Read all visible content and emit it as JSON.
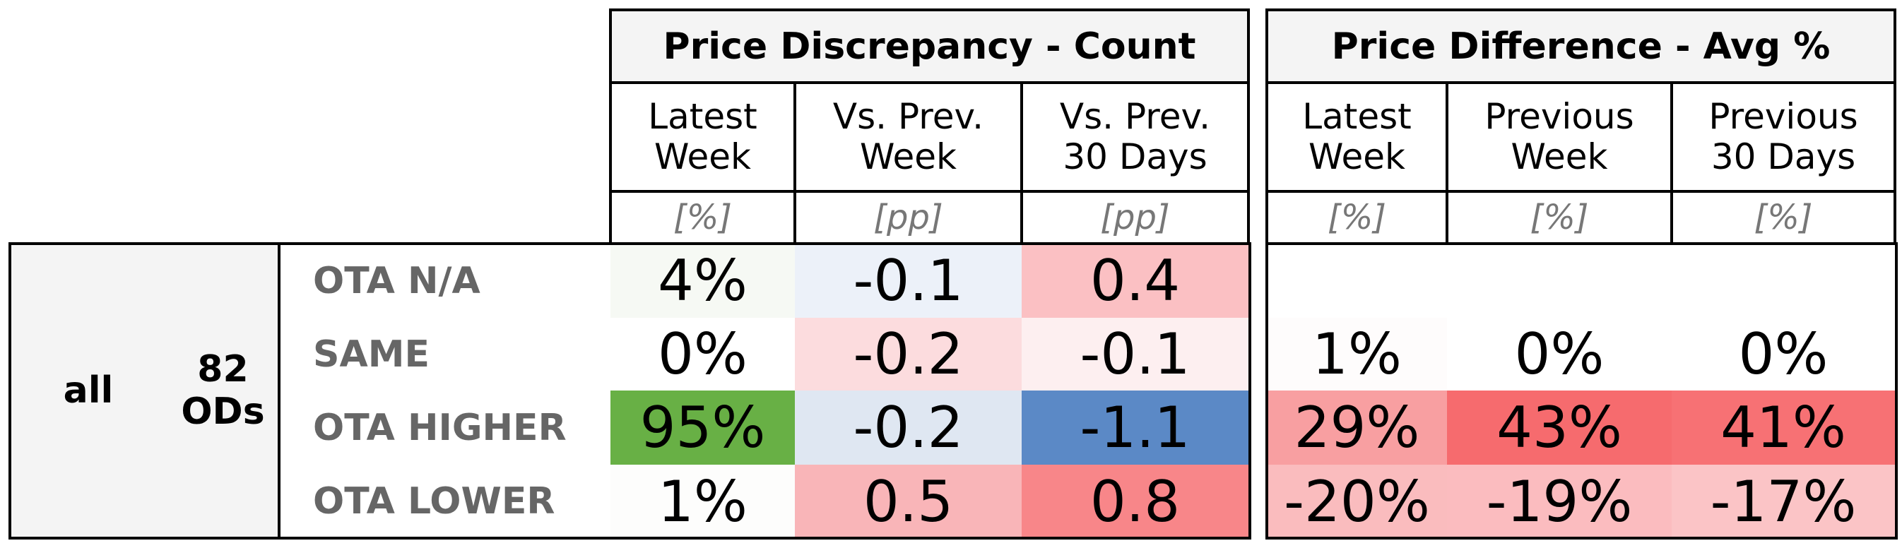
{
  "groups": [
    {
      "title": "Price Discrepancy - Count",
      "columns": [
        {
          "label": "Latest\nWeek",
          "unit": "[%]"
        },
        {
          "label": "Vs. Prev.\nWeek",
          "unit": "[pp]"
        },
        {
          "label": "Vs. Prev.\n30 Days",
          "unit": "[pp]"
        }
      ]
    },
    {
      "title": "Price Difference - Avg %",
      "columns": [
        {
          "label": "Latest\nWeek",
          "unit": "[%]"
        },
        {
          "label": "Previous\nWeek",
          "unit": "[%]"
        },
        {
          "label": "Previous\n30 Days",
          "unit": "[%]"
        }
      ]
    }
  ],
  "segment": {
    "name": "all",
    "count": "82\nODs"
  },
  "rows": [
    {
      "label": "OTA N/A",
      "cells": [
        "4%",
        "-0.1",
        "0.4",
        null,
        null,
        null
      ],
      "colors": [
        "#f6f9f4",
        "#ecf1f9",
        "#fbc0c3",
        "#ffffff",
        "#ffffff",
        "#ffffff"
      ]
    },
    {
      "label": "SAME",
      "cells": [
        "0%",
        "-0.2",
        "-0.1",
        "1%",
        "0%",
        "0%"
      ],
      "colors": [
        "#ffffff",
        "#fcdcde",
        "#fdeff0",
        "#fefcfc",
        "#ffffff",
        "#ffffff"
      ]
    },
    {
      "label": "OTA HIGHER",
      "cells": [
        "95%",
        "-0.2",
        "-1.1",
        "29%",
        "43%",
        "41%"
      ],
      "colors": [
        "#68b045",
        "#dfe7f2",
        "#5b89c6",
        "#f89fa1",
        "#f66b6e",
        "#f77174"
      ]
    },
    {
      "label": "OTA LOWER",
      "cells": [
        "1%",
        "0.5",
        "0.8",
        "-20%",
        "-19%",
        "-17%"
      ],
      "colors": [
        "#fdfdfc",
        "#f9b5b8",
        "#f88689",
        "#fabcbe",
        "#fbbcbf",
        "#fbc4c6"
      ]
    }
  ]
}
